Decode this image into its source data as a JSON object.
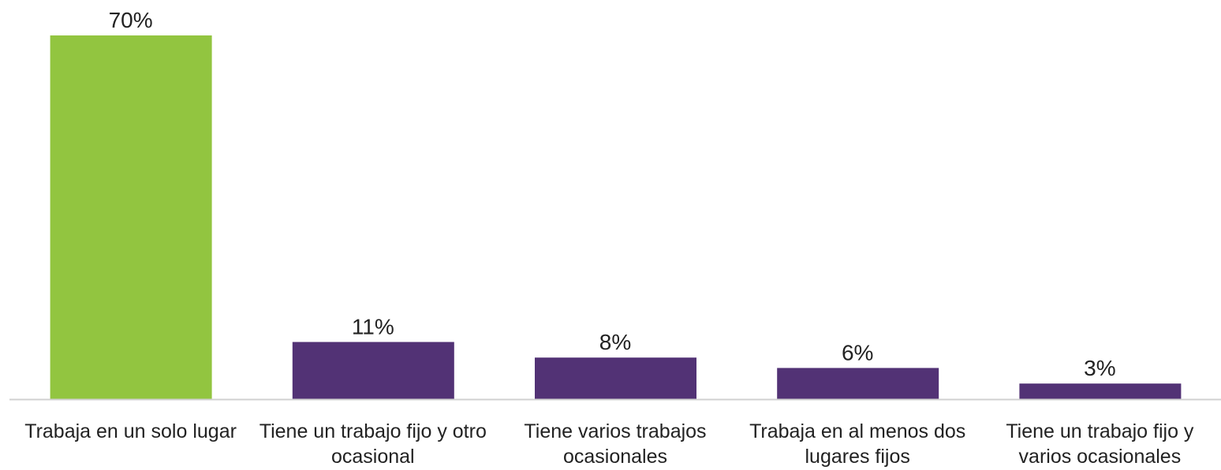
{
  "chart_data": {
    "type": "bar",
    "categories": [
      "Trabaja en un solo lugar",
      "Tiene un trabajo fijo y otro ocasional",
      "Tiene varios trabajos ocasionales",
      "Trabaja en al menos dos lugares fijos",
      "Tiene un trabajo fijo y varios ocasionales"
    ],
    "values": [
      70,
      11,
      8,
      6,
      3
    ],
    "value_labels": [
      "70%",
      "11%",
      "8%",
      "6%",
      "3%"
    ],
    "colors": [
      "#92c540",
      "#523275",
      "#523275",
      "#523275",
      "#523275"
    ]
  }
}
